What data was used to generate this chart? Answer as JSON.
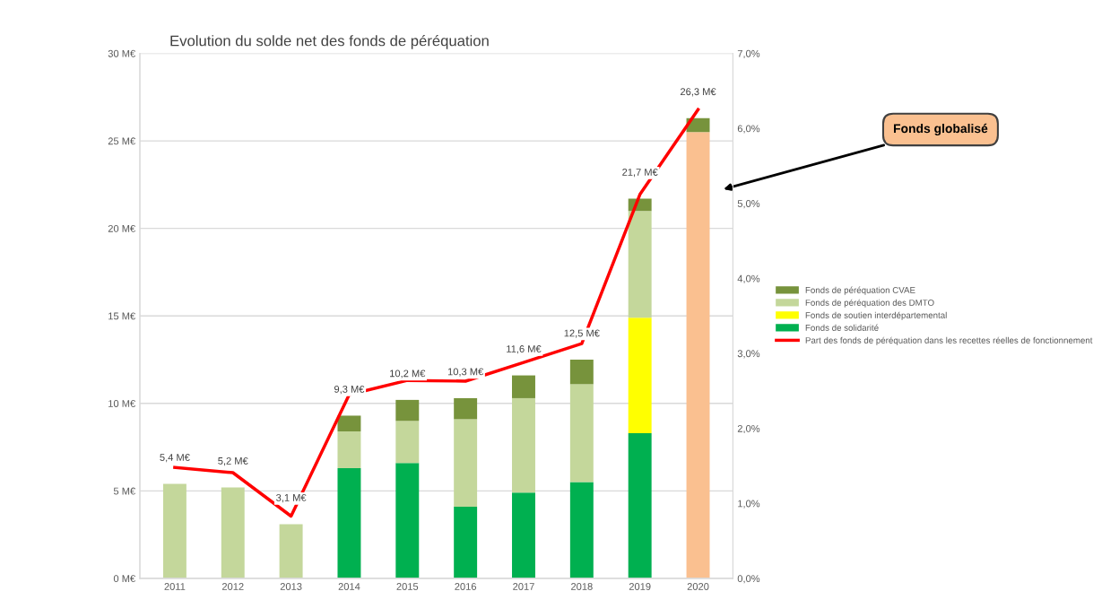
{
  "chart_data": {
    "type": "bar",
    "title": "Evolution du solde net des fonds de péréquation",
    "stacked": true,
    "categories": [
      "2011",
      "2012",
      "2013",
      "2014",
      "2015",
      "2016",
      "2017",
      "2018",
      "2019",
      "2020"
    ],
    "series": [
      {
        "name": "Fonds de solidarité",
        "color": "#00b050",
        "values": [
          null,
          null,
          null,
          6.3,
          6.6,
          4.1,
          4.9,
          5.5,
          8.3,
          null
        ]
      },
      {
        "name": "Fonds de soutien interdépartemental",
        "color": "#ffff00",
        "values": [
          null,
          null,
          null,
          null,
          null,
          null,
          null,
          null,
          6.6,
          null
        ]
      },
      {
        "name": "Fonds de péréquation des DMTO",
        "color": "#c4d79b",
        "values": [
          5.4,
          5.2,
          3.1,
          2.1,
          2.4,
          5.0,
          5.4,
          5.6,
          6.1,
          null
        ]
      },
      {
        "color": "#fac090",
        "values": [
          null,
          null,
          null,
          null,
          null,
          null,
          null,
          null,
          null,
          25.5
        ]
      },
      {
        "name": "Fonds de péréquation CVAE",
        "color": "#77933c",
        "values": [
          null,
          null,
          null,
          0.9,
          1.2,
          1.2,
          1.3,
          1.4,
          0.7,
          0.8
        ]
      },
      {
        "name": "Part des fonds de péréquation dans les recettes réelles de fonctionnement",
        "type": "line",
        "axis": "y2",
        "color": "#ff0000",
        "values": [
          1.48,
          1.41,
          0.83,
          2.45,
          2.64,
          2.63,
          2.88,
          3.13,
          5.12,
          6.25
        ]
      }
    ],
    "totals": [
      "5,4 M€",
      "5,2 M€",
      "3,1 M€",
      "9,3 M€",
      "10,2 M€",
      "10,3 M€",
      "11,6 M€",
      "12,5 M€",
      "21,7 M€",
      "26,3 M€"
    ],
    "ylim": [
      0,
      30
    ],
    "yticks": [
      {
        "value": 0,
        "label": "0 M€"
      },
      {
        "value": 5,
        "label": "5 M€"
      },
      {
        "value": 10,
        "label": "10 M€"
      },
      {
        "value": 15,
        "label": "15 M€"
      },
      {
        "value": 20,
        "label": "20 M€"
      },
      {
        "value": 25,
        "label": "25 M€"
      },
      {
        "value": 30,
        "label": "30 M€"
      }
    ],
    "y2lim": [
      0,
      7
    ],
    "y2ticks": [
      {
        "value": 0,
        "label": "0,0%"
      },
      {
        "value": 1,
        "label": "1,0%"
      },
      {
        "value": 2,
        "label": "2,0%"
      },
      {
        "value": 3,
        "label": "3,0%"
      },
      {
        "value": 4,
        "label": "4,0%"
      },
      {
        "value": 5,
        "label": "5,0%"
      },
      {
        "value": 6,
        "label": "6,0%"
      },
      {
        "value": 7,
        "label": "7,0%"
      }
    ],
    "grid": "y",
    "legend": "right",
    "line_style": "solid",
    "marker": "none",
    "annotations": [
      "Fonds globalisé"
    ]
  }
}
